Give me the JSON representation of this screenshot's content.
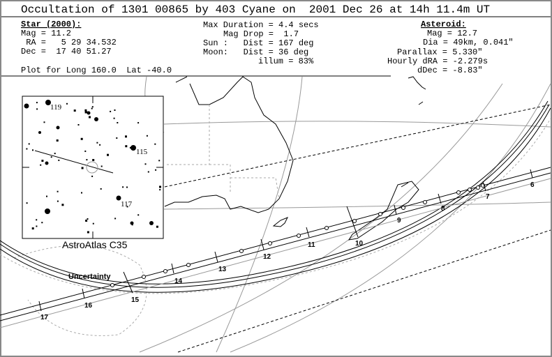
{
  "header": {
    "title": "Occultation of 1301 00865 by 403 Cyane on  2001 Dec 26 at 14h 11.4m UT",
    "star": {
      "heading": "Star (2000):",
      "lines": [
        "Mag = 11.2",
        " RA =   5 29 34.532",
        "Dec =  17 40 51.27"
      ]
    },
    "event": {
      "lines": [
        "Max Duration = 4.4 secs",
        "Mag Drop =  1.7",
        "Sun :   Dist = 167 deg",
        "Moon:   Dist = 36 deg",
        "illum = 83%"
      ]
    },
    "asteroid": {
      "heading": "Asteroid:",
      "lines": [
        "Mag = 12.7",
        "Dia = 49km, 0.041\"",
        "Parallax = 5.330\"",
        "Hourly dRA = -2.279s",
        "dDec = -8.83\""
      ]
    },
    "plot_note": "Plot for Long 160.0  Lat -40.0"
  },
  "inset": {
    "star_labels": [
      "119",
      "115",
      "117"
    ],
    "caption": "AstroAtlas C35"
  },
  "map": {
    "uncertainty_label": "Uncertainty",
    "hour_labels": [
      "6",
      "7",
      "8",
      "9",
      "10",
      "11",
      "12",
      "13",
      "14",
      "15",
      "16",
      "17"
    ]
  }
}
